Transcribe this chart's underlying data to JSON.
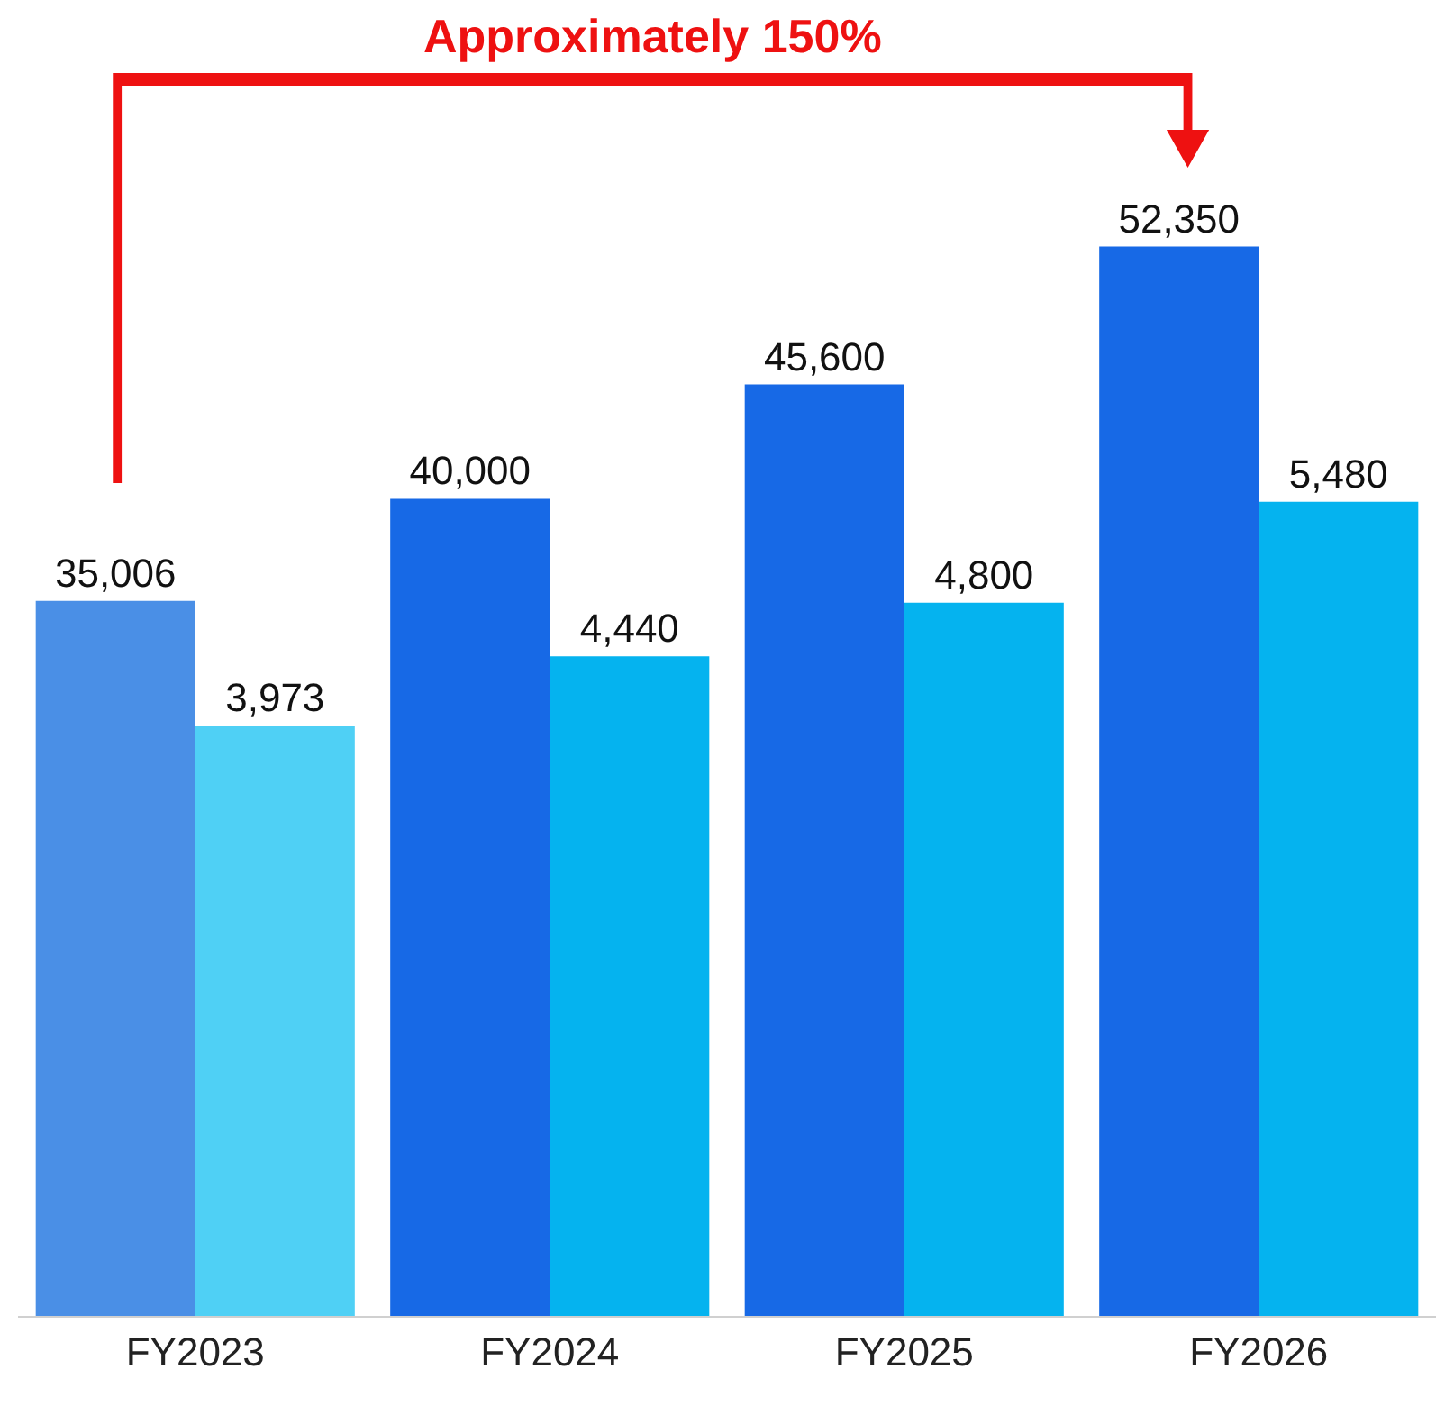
{
  "chart_data": {
    "type": "bar",
    "categories": [
      "FY2023",
      "FY2024",
      "FY2025",
      "FY2026"
    ],
    "series": [
      {
        "values": [
          35006,
          40000,
          45600,
          52350
        ],
        "value_labels": [
          "35,006",
          "40,000",
          "45,600",
          "52,350"
        ],
        "colors": [
          "#4a8fe6",
          "#1769e6",
          "#1769e6",
          "#1769e6"
        ]
      },
      {
        "values": [
          3973,
          4440,
          4800,
          5480
        ],
        "value_labels": [
          "3,973",
          "4,440",
          "4,800",
          "5,480"
        ],
        "colors": [
          "#4fd0f5",
          "#05b3ef",
          "#05b3ef",
          "#05b3ef"
        ],
        "axis": "y2"
      }
    ],
    "tick_labels": "x",
    "annotations": [
      "Approximately 150%"
    ]
  }
}
